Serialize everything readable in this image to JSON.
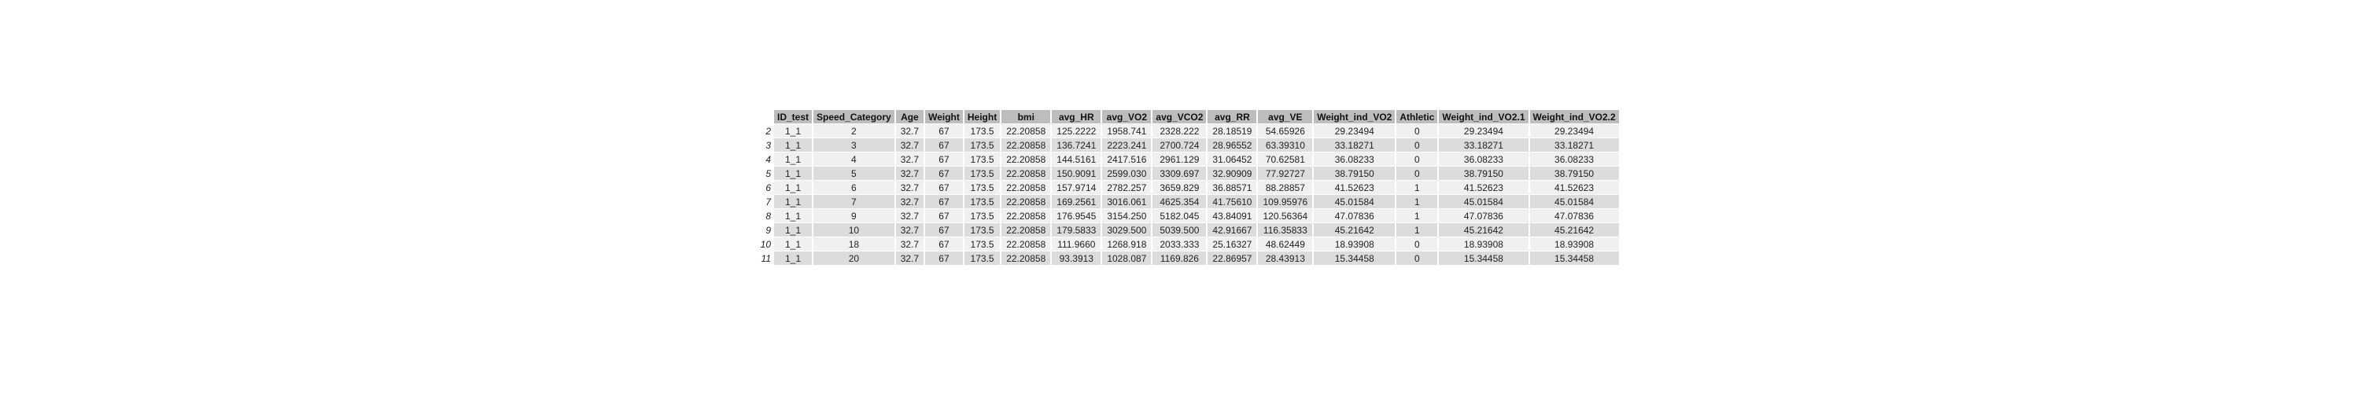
{
  "table": {
    "columns": [
      "ID_test",
      "Speed_Category",
      "Age",
      "Weight",
      "Height",
      "bmi",
      "avg_HR",
      "avg_VO2",
      "avg_VCO2",
      "avg_RR",
      "avg_VE",
      "Weight_ind_VO2",
      "Athletic",
      "Weight_ind_VO2.1",
      "Weight_ind_VO2.2"
    ],
    "rows": [
      {
        "index": "2",
        "cells": [
          "1_1",
          "2",
          "32.7",
          "67",
          "173.5",
          "22.20858",
          "125.2222",
          "1958.741",
          "2328.222",
          "28.18519",
          "54.65926",
          "29.23494",
          "0",
          "29.23494",
          "29.23494"
        ]
      },
      {
        "index": "3",
        "cells": [
          "1_1",
          "3",
          "32.7",
          "67",
          "173.5",
          "22.20858",
          "136.7241",
          "2223.241",
          "2700.724",
          "28.96552",
          "63.39310",
          "33.18271",
          "0",
          "33.18271",
          "33.18271"
        ]
      },
      {
        "index": "4",
        "cells": [
          "1_1",
          "4",
          "32.7",
          "67",
          "173.5",
          "22.20858",
          "144.5161",
          "2417.516",
          "2961.129",
          "31.06452",
          "70.62581",
          "36.08233",
          "0",
          "36.08233",
          "36.08233"
        ]
      },
      {
        "index": "5",
        "cells": [
          "1_1",
          "5",
          "32.7",
          "67",
          "173.5",
          "22.20858",
          "150.9091",
          "2599.030",
          "3309.697",
          "32.90909",
          "77.92727",
          "38.79150",
          "0",
          "38.79150",
          "38.79150"
        ]
      },
      {
        "index": "6",
        "cells": [
          "1_1",
          "6",
          "32.7",
          "67",
          "173.5",
          "22.20858",
          "157.9714",
          "2782.257",
          "3659.829",
          "36.88571",
          "88.28857",
          "41.52623",
          "1",
          "41.52623",
          "41.52623"
        ]
      },
      {
        "index": "7",
        "cells": [
          "1_1",
          "7",
          "32.7",
          "67",
          "173.5",
          "22.20858",
          "169.2561",
          "3016.061",
          "4625.354",
          "41.75610",
          "109.95976",
          "45.01584",
          "1",
          "45.01584",
          "45.01584"
        ]
      },
      {
        "index": "8",
        "cells": [
          "1_1",
          "9",
          "32.7",
          "67",
          "173.5",
          "22.20858",
          "176.9545",
          "3154.250",
          "5182.045",
          "43.84091",
          "120.56364",
          "47.07836",
          "1",
          "47.07836",
          "47.07836"
        ]
      },
      {
        "index": "9",
        "cells": [
          "1_1",
          "10",
          "32.7",
          "67",
          "173.5",
          "22.20858",
          "179.5833",
          "3029.500",
          "5039.500",
          "42.91667",
          "116.35833",
          "45.21642",
          "1",
          "45.21642",
          "45.21642"
        ]
      },
      {
        "index": "10",
        "cells": [
          "1_1",
          "18",
          "32.7",
          "67",
          "173.5",
          "22.20858",
          "111.9660",
          "1268.918",
          "2033.333",
          "25.16327",
          "48.62449",
          "18.93908",
          "0",
          "18.93908",
          "18.93908"
        ]
      },
      {
        "index": "11",
        "cells": [
          "1_1",
          "20",
          "32.7",
          "67",
          "173.5",
          "22.20858",
          "93.3913",
          "1028.087",
          "1169.826",
          "22.86957",
          "28.43913",
          "15.34458",
          "0",
          "15.34458",
          "15.34458"
        ]
      }
    ]
  },
  "colors": {
    "header_bg": "#bdbdbd",
    "row_light": "#f0f0f0",
    "row_dark": "#dcdcdc"
  }
}
